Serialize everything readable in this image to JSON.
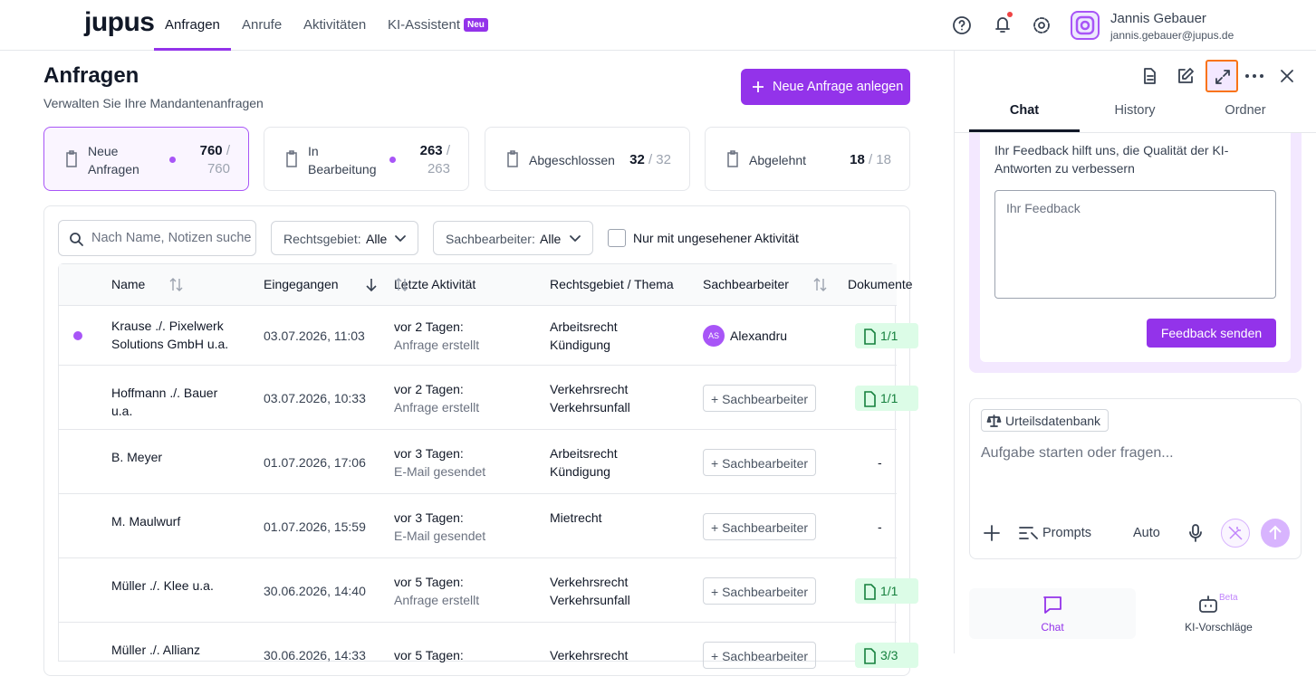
{
  "nav": {
    "logo": "jupus",
    "items": [
      "Anfragen",
      "Anrufe",
      "Aktivitäten",
      "KI-Assistent"
    ],
    "badge": "Neu",
    "user": {
      "name": "Jannis Gebauer",
      "email": "jannis.gebauer@jupus.de"
    }
  },
  "header": {
    "title": "Anfragen",
    "subtitle": "Verwalten Sie Ihre Mandantenanfragen",
    "button": "Neue Anfrage anlegen"
  },
  "stats": [
    {
      "label": "Neue Anfragen",
      "count": "760",
      "total": "/ 760"
    },
    {
      "label": "In Bearbeitung",
      "count": "263",
      "total": "/ 263"
    },
    {
      "label": "Abgeschlossen",
      "count": "32",
      "total": "/ 32"
    },
    {
      "label": "Abgelehnt",
      "count": "18",
      "total": "/ 18"
    }
  ],
  "filters": {
    "search": "Nach Name, Notizen suche",
    "selects": [
      {
        "label": "Rechtsgebiet:",
        "value": "Alle"
      },
      {
        "label": "Sachbearbeiter:",
        "value": "Alle"
      }
    ],
    "checkbox": "Nur mit ungesehener Aktivität"
  },
  "table": {
    "columns": [
      "Name",
      "Eingegangen",
      "Letzte Aktivität",
      "Rechtsgebiet / Thema",
      "Sachbearbeiter",
      "Dokumente"
    ],
    "assign_label": "+ Sachbearbeiter",
    "rows": [
      {
        "unread": true,
        "name": "Krause ./. Pixelwerk Solutions GmbH u.a.",
        "date": "03.07.2026, 11:03",
        "when": "vor 2 Tagen:",
        "activity": "Anfrage erstellt",
        "area": "Arbeitsrecht",
        "topic": "Kündigung",
        "initials": "AS",
        "assignee": "Alexandru",
        "docs": "1/1"
      },
      {
        "unread": false,
        "name": "Hoffmann ./. Bauer u.a.",
        "date": "03.07.2026, 10:33",
        "when": "vor 2 Tagen:",
        "activity": "Anfrage erstellt",
        "area": "Verkehrsrecht",
        "topic": "Verkehrsunfall",
        "docs": "1/1"
      },
      {
        "unread": false,
        "name": "B. Meyer",
        "date": "01.07.2026, 17:06",
        "when": "vor 3 Tagen:",
        "activity": "E-Mail gesendet",
        "area": "Arbeitsrecht",
        "topic": "Kündigung",
        "docs": "-"
      },
      {
        "unread": false,
        "name": "M. Maulwurf",
        "date": "01.07.2026, 15:59",
        "when": "vor 3 Tagen:",
        "activity": "E-Mail gesendet",
        "area": "Mietrecht",
        "docs": "-"
      },
      {
        "unread": false,
        "name": "Müller ./. Klee u.a.",
        "date": "30.06.2026, 14:40",
        "when": "vor 5 Tagen:",
        "activity": "Anfrage erstellt",
        "area": "Verkehrsrecht",
        "topic": "Verkehrsunfall",
        "docs": "1/1"
      },
      {
        "unread": false,
        "name": "Müller ./. Allianz",
        "date": "30.06.2026, 14:33",
        "when": "vor 5 Tagen:",
        "area": "Verkehrsrecht",
        "docs": "3/3"
      }
    ]
  },
  "sidebar": {
    "tabs": [
      "Chat",
      "History",
      "Ordner"
    ],
    "feedback": {
      "text": "Ihr Feedback hilft uns, die Qualität der KI-Antworten zu verbessern",
      "placeholder": "Ihr Feedback",
      "button": "Feedback senden"
    },
    "composer": {
      "chip": "Urteilsdatenbank",
      "placeholder": "Aufgabe starten oder fragen...",
      "prompts": "Prompts",
      "mode": "Auto"
    },
    "bottom": [
      {
        "label": "Chat"
      },
      {
        "label": "KI-Vorschläge",
        "badge": "Beta"
      }
    ]
  }
}
